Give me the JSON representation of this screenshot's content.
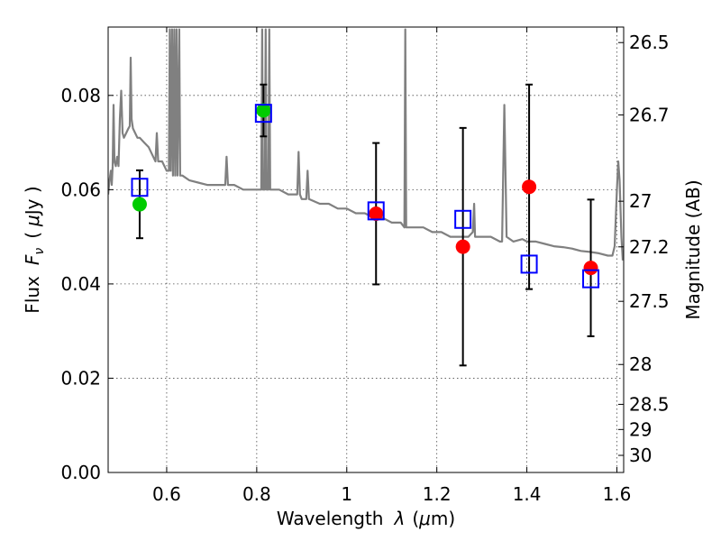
{
  "chart_data": {
    "type": "scatter",
    "xlabel_prefix": "Wavelength",
    "xlabel_var": "λ",
    "xlabel_unit_open": "(",
    "xlabel_unit_mu": "μ",
    "xlabel_unit_rest": "m)",
    "ylabel_prefix": "Flux",
    "ylabel_var": "F",
    "ylabel_sub": "ν",
    "ylabel_unit_open": "(",
    "ylabel_unit_mu": "μ",
    "ylabel_unit_rest": "Jy )",
    "y2label": "Magnitude (AB)",
    "xlim": [
      0.47,
      1.615
    ],
    "ylim": [
      0.0,
      0.0945
    ],
    "grid": true,
    "xticks": [
      {
        "value": 0.6,
        "label": "0.6"
      },
      {
        "value": 0.8,
        "label": "0.8"
      },
      {
        "value": 1.0,
        "label": "1"
      },
      {
        "value": 1.2,
        "label": "1.2"
      },
      {
        "value": 1.4,
        "label": "1.4"
      },
      {
        "value": 1.6,
        "label": "1.6"
      }
    ],
    "yticks": [
      {
        "value": 0.0,
        "label": "0.00"
      },
      {
        "value": 0.02,
        "label": "0.02"
      },
      {
        "value": 0.04,
        "label": "0.04"
      },
      {
        "value": 0.06,
        "label": "0.06"
      },
      {
        "value": 0.08,
        "label": "0.08"
      }
    ],
    "y2ticks": [
      {
        "mag": 26.5,
        "label": "26.5"
      },
      {
        "mag": 26.7,
        "label": "26.7"
      },
      {
        "mag": 27.0,
        "label": "27"
      },
      {
        "mag": 27.2,
        "label": "27.2"
      },
      {
        "mag": 27.5,
        "label": "27.5"
      },
      {
        "mag": 28.0,
        "label": "28"
      },
      {
        "mag": 28.5,
        "label": "28.5"
      },
      {
        "mag": 29.0,
        "label": "29"
      },
      {
        "mag": 30.0,
        "label": "30"
      }
    ],
    "series": [
      {
        "name": "model-spectrum",
        "kind": "line",
        "color": "#808080",
        "points": [
          [
            0.47,
            0.059
          ],
          [
            0.473,
            0.062
          ],
          [
            0.476,
            0.064
          ],
          [
            0.478,
            0.061
          ],
          [
            0.48,
            0.065
          ],
          [
            0.482,
            0.078
          ],
          [
            0.484,
            0.066
          ],
          [
            0.487,
            0.065
          ],
          [
            0.49,
            0.067
          ],
          [
            0.493,
            0.065
          ],
          [
            0.496,
            0.075
          ],
          [
            0.499,
            0.081
          ],
          [
            0.502,
            0.072
          ],
          [
            0.505,
            0.071
          ],
          [
            0.51,
            0.072
          ],
          [
            0.515,
            0.073
          ],
          [
            0.518,
            0.0735
          ],
          [
            0.52,
            0.088
          ],
          [
            0.522,
            0.075
          ],
          [
            0.525,
            0.073
          ],
          [
            0.53,
            0.072
          ],
          [
            0.535,
            0.071
          ],
          [
            0.54,
            0.071
          ],
          [
            0.55,
            0.07
          ],
          [
            0.56,
            0.069
          ],
          [
            0.57,
            0.067
          ],
          [
            0.575,
            0.066
          ],
          [
            0.578,
            0.072
          ],
          [
            0.581,
            0.066
          ],
          [
            0.585,
            0.066
          ],
          [
            0.59,
            0.066
          ],
          [
            0.595,
            0.065
          ],
          [
            0.6,
            0.064
          ],
          [
            0.605,
            0.064
          ],
          [
            0.607,
            0.094
          ],
          [
            0.609,
            0.064
          ],
          [
            0.612,
            0.094
          ],
          [
            0.614,
            0.063
          ],
          [
            0.617,
            0.094
          ],
          [
            0.619,
            0.063
          ],
          [
            0.622,
            0.094
          ],
          [
            0.624,
            0.063
          ],
          [
            0.628,
            0.094
          ],
          [
            0.63,
            0.063
          ],
          [
            0.635,
            0.063
          ],
          [
            0.65,
            0.062
          ],
          [
            0.67,
            0.0615
          ],
          [
            0.69,
            0.061
          ],
          [
            0.71,
            0.061
          ],
          [
            0.72,
            0.061
          ],
          [
            0.73,
            0.061
          ],
          [
            0.733,
            0.067
          ],
          [
            0.736,
            0.061
          ],
          [
            0.75,
            0.061
          ],
          [
            0.77,
            0.06
          ],
          [
            0.78,
            0.06
          ],
          [
            0.79,
            0.06
          ],
          [
            0.8,
            0.06
          ],
          [
            0.81,
            0.06
          ],
          [
            0.812,
            0.094
          ],
          [
            0.814,
            0.06
          ],
          [
            0.818,
            0.06
          ],
          [
            0.82,
            0.094
          ],
          [
            0.822,
            0.06
          ],
          [
            0.826,
            0.06
          ],
          [
            0.828,
            0.094
          ],
          [
            0.83,
            0.06
          ],
          [
            0.85,
            0.06
          ],
          [
            0.87,
            0.059
          ],
          [
            0.89,
            0.059
          ],
          [
            0.893,
            0.068
          ],
          [
            0.896,
            0.059
          ],
          [
            0.9,
            0.058
          ],
          [
            0.91,
            0.058
          ],
          [
            0.913,
            0.064
          ],
          [
            0.916,
            0.058
          ],
          [
            0.94,
            0.057
          ],
          [
            0.96,
            0.057
          ],
          [
            0.98,
            0.056
          ],
          [
            1.0,
            0.056
          ],
          [
            1.02,
            0.055
          ],
          [
            1.04,
            0.055
          ],
          [
            1.06,
            0.054
          ],
          [
            1.08,
            0.054
          ],
          [
            1.1,
            0.053
          ],
          [
            1.12,
            0.053
          ],
          [
            1.128,
            0.052
          ],
          [
            1.13,
            0.094
          ],
          [
            1.132,
            0.052
          ],
          [
            1.15,
            0.052
          ],
          [
            1.17,
            0.052
          ],
          [
            1.19,
            0.051
          ],
          [
            1.21,
            0.051
          ],
          [
            1.23,
            0.05
          ],
          [
            1.25,
            0.05
          ],
          [
            1.27,
            0.05
          ],
          [
            1.28,
            0.051
          ],
          [
            1.283,
            0.057
          ],
          [
            1.285,
            0.05
          ],
          [
            1.3,
            0.05
          ],
          [
            1.32,
            0.05
          ],
          [
            1.34,
            0.049
          ],
          [
            1.345,
            0.049
          ],
          [
            1.35,
            0.078
          ],
          [
            1.355,
            0.05
          ],
          [
            1.37,
            0.049
          ],
          [
            1.39,
            0.0495
          ],
          [
            1.4,
            0.049
          ],
          [
            1.42,
            0.049
          ],
          [
            1.44,
            0.0485
          ],
          [
            1.46,
            0.048
          ],
          [
            1.48,
            0.0478
          ],
          [
            1.5,
            0.0475
          ],
          [
            1.52,
            0.047
          ],
          [
            1.54,
            0.0468
          ],
          [
            1.56,
            0.0465
          ],
          [
            1.58,
            0.046
          ],
          [
            1.59,
            0.046
          ],
          [
            1.595,
            0.048
          ],
          [
            1.6,
            0.06
          ],
          [
            1.603,
            0.066
          ],
          [
            1.606,
            0.062
          ],
          [
            1.61,
            0.05
          ],
          [
            1.613,
            0.045
          ]
        ]
      },
      {
        "name": "model-photometry",
        "kind": "open-square",
        "color": "#0000ff",
        "points": [
          [
            0.54,
            0.0605
          ],
          [
            0.815,
            0.0762
          ],
          [
            1.065,
            0.0555
          ],
          [
            1.258,
            0.0537
          ],
          [
            1.405,
            0.0442
          ],
          [
            1.542,
            0.0411
          ]
        ]
      },
      {
        "name": "ground-photometry",
        "kind": "filled-circle",
        "color": "#00cc00",
        "points": [
          [
            0.54,
            0.0569
          ],
          [
            0.815,
            0.0768
          ]
        ],
        "errors": [
          0.0072,
          0.0055
        ]
      },
      {
        "name": "hst-photometry",
        "kind": "filled-circle",
        "color": "#ff0000",
        "points": [
          [
            1.065,
            0.0549
          ],
          [
            1.258,
            0.0479
          ],
          [
            1.405,
            0.0606
          ],
          [
            1.542,
            0.0434
          ]
        ],
        "errors": [
          0.015,
          0.0252,
          0.0217,
          0.0145
        ]
      }
    ]
  }
}
